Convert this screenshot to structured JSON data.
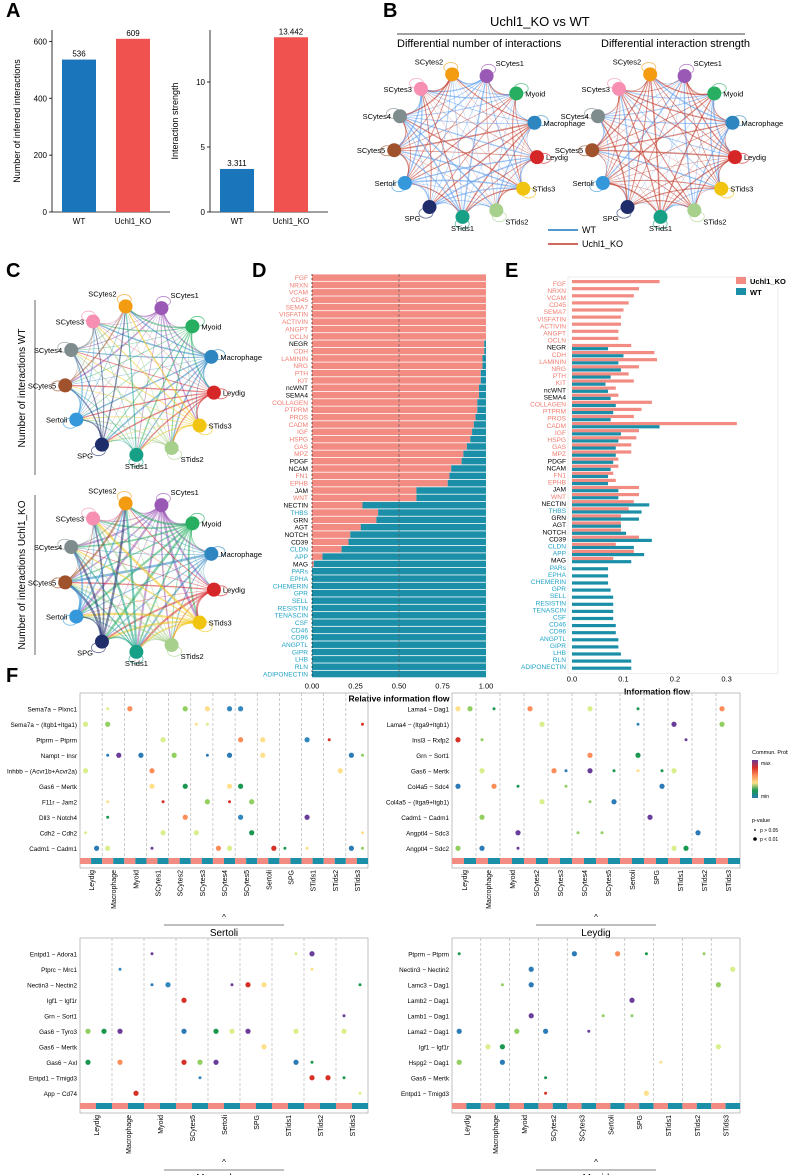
{
  "panel_labels": [
    "A",
    "B",
    "C",
    "D",
    "E",
    "F"
  ],
  "colors": {
    "wt": "#1b75bb",
    "ko": "#f0524f",
    "pink": "#f28b82",
    "teal": "#1a8fa7",
    "blueText": "#20a3c6",
    "redText": "#f07c70"
  },
  "panel_a": {
    "left": {
      "ylabel": "Number of inferred interactions",
      "categories": [
        "WT",
        "Uchl1_KO"
      ],
      "values": [
        536,
        609
      ],
      "labels": [
        "536",
        "609"
      ],
      "ylim": [
        0,
        640
      ],
      "ticks": [
        0,
        200,
        400,
        600
      ]
    },
    "right": {
      "ylabel": "Interaction strength",
      "categories": [
        "WT",
        "Uchl1_KO"
      ],
      "values": [
        3.311,
        13.442
      ],
      "labels": [
        "3.311",
        "13.442"
      ],
      "ylim": [
        0,
        14
      ],
      "ticks": [
        0,
        5,
        10
      ]
    }
  },
  "panel_b": {
    "title": "Uchl1_KO vs  WT",
    "sub_left": "Differential number of interactions",
    "sub_right": "Differential interaction strength",
    "legend": [
      "WT",
      "Uchl1_KO"
    ]
  },
  "nodes": [
    {
      "name": "SCytes1",
      "color": "#9b59b6"
    },
    {
      "name": "Myoid",
      "color": "#27ae60"
    },
    {
      "name": "Macrophage",
      "color": "#2e86c1"
    },
    {
      "name": "Leydig",
      "color": "#d62728"
    },
    {
      "name": "STids3",
      "color": "#f1c40f"
    },
    {
      "name": "STids2",
      "color": "#a8d08d"
    },
    {
      "name": "STids1",
      "color": "#16a085"
    },
    {
      "name": "SPG",
      "color": "#1f2d6b"
    },
    {
      "name": "Sertoli",
      "color": "#3498db"
    },
    {
      "name": "SCytes5",
      "color": "#a0522d"
    },
    {
      "name": "SCytes4",
      "color": "#7f8c8d"
    },
    {
      "name": "SCytes3",
      "color": "#f78fb3"
    },
    {
      "name": "SCytes2",
      "color": "#f39c12"
    }
  ],
  "panel_c": {
    "label_top": "Number of interactions WT",
    "label_bottom": "Number of interactions Uchl1_KO"
  },
  "panel_d": {
    "xlabel": "Relative information flow",
    "ticks": [
      "0.00",
      "0.25",
      "0.50",
      "0.75",
      "1.00"
    ],
    "pathways": [
      "FGF",
      "NRXN",
      "VCAM",
      "CD45",
      "SEMA7",
      "VISFATIN",
      "ACTIVIN",
      "ANGPT",
      "OCLN",
      "NEGR",
      "CDH",
      "LAMININ",
      "NRG",
      "PTH",
      "KIT",
      "ncWNT",
      "SEMA4",
      "COLLAGEN",
      "PTPRM",
      "PROS",
      "CADM",
      "IGF",
      "HSPG",
      "GAS",
      "MPZ",
      "PDGF",
      "NCAM",
      "FN1",
      "EPHB",
      "JAM",
      "WNT",
      "NECTIN",
      "THBS",
      "GRN",
      "AGT",
      "NOTCH",
      "CD39",
      "CLDN",
      "APP",
      "MAG",
      "PARs",
      "EPHA",
      "CHEMERIN",
      "GPR",
      "SELL",
      "RESISTIN",
      "TENASCIN",
      "CSF",
      "CD46",
      "CD96",
      "ANGPTL",
      "GIPR",
      "LHB",
      "RLN",
      "ADIPONECTIN"
    ],
    "label_groups": [
      "r",
      "r",
      "r",
      "r",
      "r",
      "r",
      "r",
      "r",
      "r",
      "k",
      "r",
      "r",
      "r",
      "r",
      "r",
      "k",
      "k",
      "r",
      "r",
      "r",
      "r",
      "r",
      "r",
      "r",
      "r",
      "k",
      "k",
      "r",
      "r",
      "k",
      "r",
      "k",
      "b",
      "k",
      "k",
      "k",
      "k",
      "b",
      "b",
      "k",
      "b",
      "b",
      "b",
      "b",
      "b",
      "b",
      "b",
      "b",
      "b",
      "b",
      "b",
      "b",
      "b",
      "b",
      "b"
    ],
    "ko_fraction": [
      1,
      1,
      1,
      1,
      1,
      1,
      1,
      1,
      1,
      0.99,
      0.99,
      0.98,
      0.98,
      0.97,
      0.97,
      0.96,
      0.96,
      0.95,
      0.95,
      0.94,
      0.93,
      0.92,
      0.91,
      0.89,
      0.87,
      0.86,
      0.8,
      0.79,
      0.78,
      0.6,
      0.6,
      0.29,
      0.38,
      0.37,
      0.28,
      0.22,
      0.21,
      0.17,
      0.06,
      0.01,
      0,
      0,
      0,
      0,
      0,
      0,
      0,
      0,
      0,
      0,
      0,
      0,
      0,
      0,
      0
    ]
  },
  "panel_e": {
    "xlabel": "Information flow",
    "ticks": [
      "0.0",
      "0.1",
      "0.2",
      "0.3"
    ],
    "legend": [
      "Uchl1_KO",
      "WT"
    ],
    "ko": [
      0.17,
      0.13,
      0.12,
      0.11,
      0.1,
      0.095,
      0.095,
      0.09,
      0.09,
      0.115,
      0.16,
      0.165,
      0.13,
      0.11,
      0.12,
      0.085,
      0.09,
      0.155,
      0.135,
      0.12,
      0.32,
      0.13,
      0.125,
      0.115,
      0.115,
      0.09,
      0.09,
      0.08,
      0.085,
      0.13,
      0.13,
      0.12,
      0.11,
      0.095,
      0.095,
      0.095,
      0.13,
      0.085,
      0.12,
      0.08,
      0,
      0,
      0,
      0,
      0,
      0,
      0,
      0,
      0,
      0,
      0,
      0,
      0,
      0,
      0
    ],
    "wt": [
      0,
      0,
      0,
      0,
      0,
      0,
      0,
      0,
      0,
      0.07,
      0.1,
      0.09,
      0.095,
      0.075,
      0.065,
      0.07,
      0.075,
      0.085,
      0.08,
      0.075,
      0.17,
      0.095,
      0.09,
      0.085,
      0.085,
      0.08,
      0.075,
      0.07,
      0.07,
      0.09,
      0.09,
      0.15,
      0.135,
      0.13,
      0.095,
      0.105,
      0.155,
      0.12,
      0.14,
      0.115,
      0.07,
      0.07,
      0.07,
      0.075,
      0.08,
      0.08,
      0.08,
      0.08,
      0.085,
      0.085,
      0.09,
      0.09,
      0.095,
      0.115,
      0.115
    ]
  },
  "panel_f": {
    "legend_title": "Commun. Prob.",
    "legend_max": "max",
    "legend_min": "min",
    "pvalue_title": "p-value",
    "pvalue_items": [
      "p > 0.05",
      "p < 0.01"
    ],
    "source_marker": "^",
    "sub": [
      {
        "source": "Sertoli",
        "rows": [
          "Sema7a − Plxnc1",
          "Sema7a − (Itgb1+Itga1)",
          "Ptprm − Ptprm",
          "Nampt − Insr",
          "Inhbb − (Acvr1b+Acvr2a)",
          "Gas6 − Mertk",
          "F11r − Jam2",
          "Dll3 − Notch4",
          "Cdh2 − Cdh2",
          "Cadm1 − Cadm1"
        ],
        "cols": [
          "Leydig",
          "Macrophage",
          "Myoid",
          "SCytes1",
          "SCytes2",
          "SCytes3",
          "SCytes4",
          "SCytes5",
          "Sertoli",
          "SPG",
          "STids1",
          "STids2",
          "STids3"
        ]
      },
      {
        "source": "Leydig",
        "rows": [
          "Lama4 − Dag1",
          "Lama4 − (Itga9+Itgb1)",
          "Insl3 − Rxfp2",
          "Grn − Sort1",
          "Gas6 − Mertk",
          "Col4a5 − Sdc4",
          "Col4a5 − (Itga9+Itgb1)",
          "Cadm1 − Cadm1",
          "Angptl4 − Sdc3",
          "Angptl4 − Sdc2"
        ],
        "cols": [
          "Leydig",
          "Macrophage",
          "Myoid",
          "SCytes2",
          "SCytes3",
          "SCytes4",
          "SCytes5",
          "Sertoli",
          "SPG",
          "STids1",
          "STids2",
          "STids3"
        ]
      },
      {
        "source": "Macrophage",
        "rows": [
          "Entpd1 − Adora1",
          "Ptprc − Mrc1",
          "Nectin3 − Nectin2",
          "Igf1 − Igf1r",
          "Grn − Sort1",
          "Gas6 − Tyro3",
          "Gas6 − Mertk",
          "Gas6 − Axl",
          "Entpd1 − Tmigd3",
          "App − Cd74"
        ],
        "cols": [
          "Leydig",
          "Macrophage",
          "Myoid",
          "SCytes5",
          "Sertoli",
          "SPG",
          "STids1",
          "STids2",
          "STids3"
        ]
      },
      {
        "source": "Myoid",
        "rows": [
          "Ptprm − Ptprm",
          "Nectin3 − Nectin2",
          "Lamc3 − Dag1",
          "Lamb2 − Dag1",
          "Lamb1 − Dag1",
          "Lama2 − Dag1",
          "Igf1 − Igf1r",
          "Hspg2 − Dag1",
          "Gas6 − Mertk",
          "Entpd1 − Tmigd3"
        ],
        "cols": [
          "Leydig",
          "Macrophage",
          "Myoid",
          "SCytes2",
          "SCytes3",
          "Sertoli",
          "SPG",
          "STids1",
          "STids2",
          "STids3"
        ]
      }
    ]
  }
}
